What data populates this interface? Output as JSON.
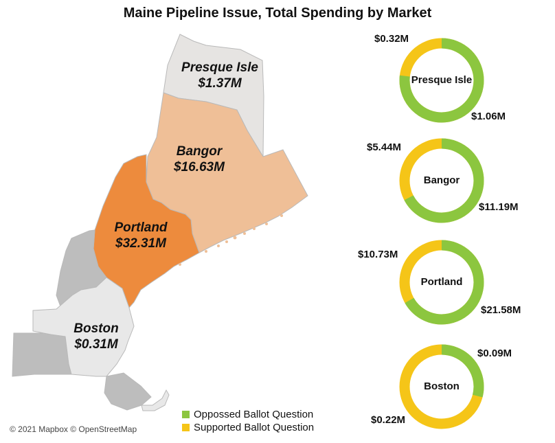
{
  "title": "Maine Pipeline Issue, Total Spending by Market",
  "colors": {
    "opposed": "#8cc63f",
    "supported": "#f5c518",
    "portland": "#ed8b3d",
    "bangor": "#efbf97",
    "presque_isle": "#e6e4e2",
    "boston": "#e8e8e8",
    "other": "#bdbdbd"
  },
  "map_labels": [
    {
      "name": "Presque Isle",
      "value": "$1.37M"
    },
    {
      "name": "Bangor",
      "value": "$16.63M"
    },
    {
      "name": "Portland",
      "value": "$32.31M"
    },
    {
      "name": "Boston",
      "value": "$0.31M"
    }
  ],
  "chart_data": {
    "type": "pie",
    "style": "donut",
    "markets": [
      {
        "market": "Presque Isle",
        "opposed": 1.06,
        "supported": 0.32,
        "opposed_label": "$1.06M",
        "supported_label": "$0.32M"
      },
      {
        "market": "Bangor",
        "opposed": 11.19,
        "supported": 5.44,
        "opposed_label": "$11.19M",
        "supported_label": "$5.44M"
      },
      {
        "market": "Portland",
        "opposed": 21.58,
        "supported": 10.73,
        "opposed_label": "$21.58M",
        "supported_label": "$10.73M"
      },
      {
        "market": "Boston",
        "opposed": 0.09,
        "supported": 0.22,
        "opposed_label": "$0.09M",
        "supported_label": "$0.22M"
      }
    ]
  },
  "legend": {
    "opposed": "Oppossed Ballot Question",
    "supported": "Supported Ballot Question"
  },
  "credit": "© 2021 Mapbox © OpenStreetMap"
}
